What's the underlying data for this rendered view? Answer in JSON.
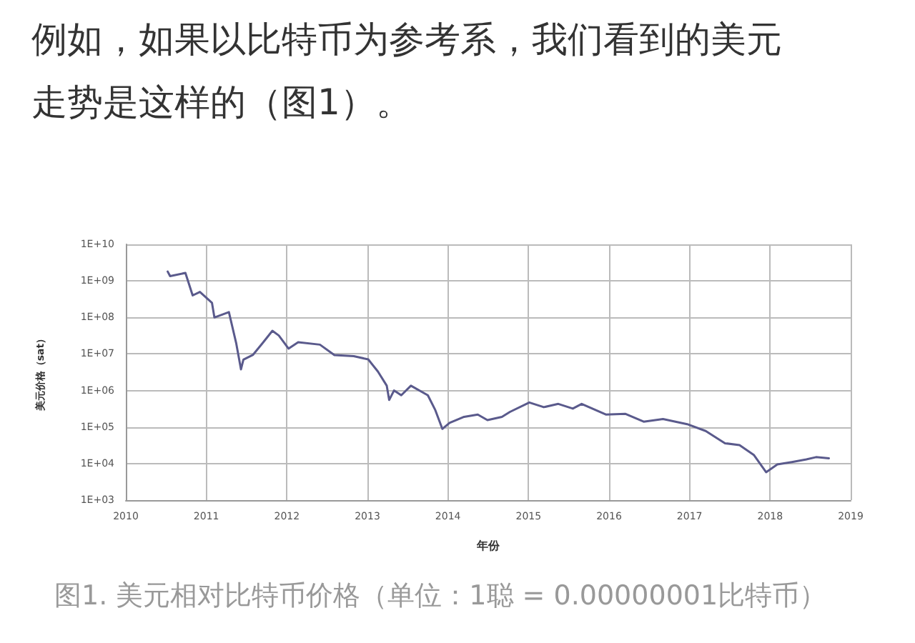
{
  "chart_data": {
    "type": "line",
    "title": "例如，如果以比特币为参考系，我们看到的美元走势是这样的（图1）。",
    "xlabel": "年份",
    "ylabel": "美元价格（sat）",
    "annotations": [
      "图1. 美元相对比特币价格（单位：1聪 = 0.00000001比特币）"
    ],
    "x": [
      2010.52,
      2010.55,
      2010.74,
      2010.83,
      2010.92,
      2011.07,
      2011.1,
      2011.28,
      2011.37,
      2011.43,
      2011.46,
      2011.58,
      2011.7,
      2011.82,
      2011.9,
      2012.02,
      2012.14,
      2012.41,
      2012.59,
      2012.83,
      2013.01,
      2013.13,
      2013.24,
      2013.27,
      2013.33,
      2013.42,
      2013.54,
      2013.75,
      2013.84,
      2013.93,
      2014.02,
      2014.2,
      2014.37,
      2014.49,
      2014.67,
      2014.77,
      2015.01,
      2015.19,
      2015.37,
      2015.55,
      2015.66,
      2015.96,
      2016.2,
      2016.43,
      2016.67,
      2016.97,
      2017.2,
      2017.44,
      2017.62,
      2017.8,
      2017.95,
      2018.09,
      2018.27,
      2018.45,
      2018.57,
      2018.73
    ],
    "series": [
      {
        "color": "#5a5a8c",
        "values": [
          1800000000,
          1350000000,
          1650000000,
          400000000,
          500000000,
          250000000,
          100000000,
          140000000,
          20000000,
          3800000,
          7000000,
          9500000,
          20000000,
          43000000,
          32000000,
          14000000,
          21000000,
          18000000,
          9300000,
          8700000,
          7100000,
          3300000,
          1350000,
          550000,
          1000000,
          740000,
          1350000,
          740000,
          300000,
          89000,
          130000,
          190000,
          220000,
          155000,
          190000,
          260000,
          470000,
          350000,
          430000,
          320000,
          430000,
          220000,
          230000,
          140000,
          165000,
          120000,
          78000,
          36000,
          32000,
          17000,
          5800,
          9500,
          11000,
          13000,
          15000,
          14000
        ]
      }
    ],
    "xlim": [
      2010,
      2019
    ],
    "xticks": [
      2010,
      2011,
      2012,
      2013,
      2014,
      2015,
      2016,
      2017,
      2018,
      2019
    ],
    "ylim": [
      1000,
      10000000000
    ],
    "log": true,
    "yticks": [
      {
        "value": 1000,
        "label": "1E+03"
      },
      {
        "value": 10000,
        "label": "1E+04"
      },
      {
        "value": 100000,
        "label": "1E+05"
      },
      {
        "value": 1000000,
        "label": "1E+06"
      },
      {
        "value": 10000000,
        "label": "1E+07"
      },
      {
        "value": 100000000,
        "label": "1E+08"
      },
      {
        "value": 1000000000,
        "label": "1E+09"
      },
      {
        "value": 10000000000,
        "label": "1E+10"
      }
    ],
    "grid": true,
    "marker": "none",
    "line_style": "solid"
  }
}
